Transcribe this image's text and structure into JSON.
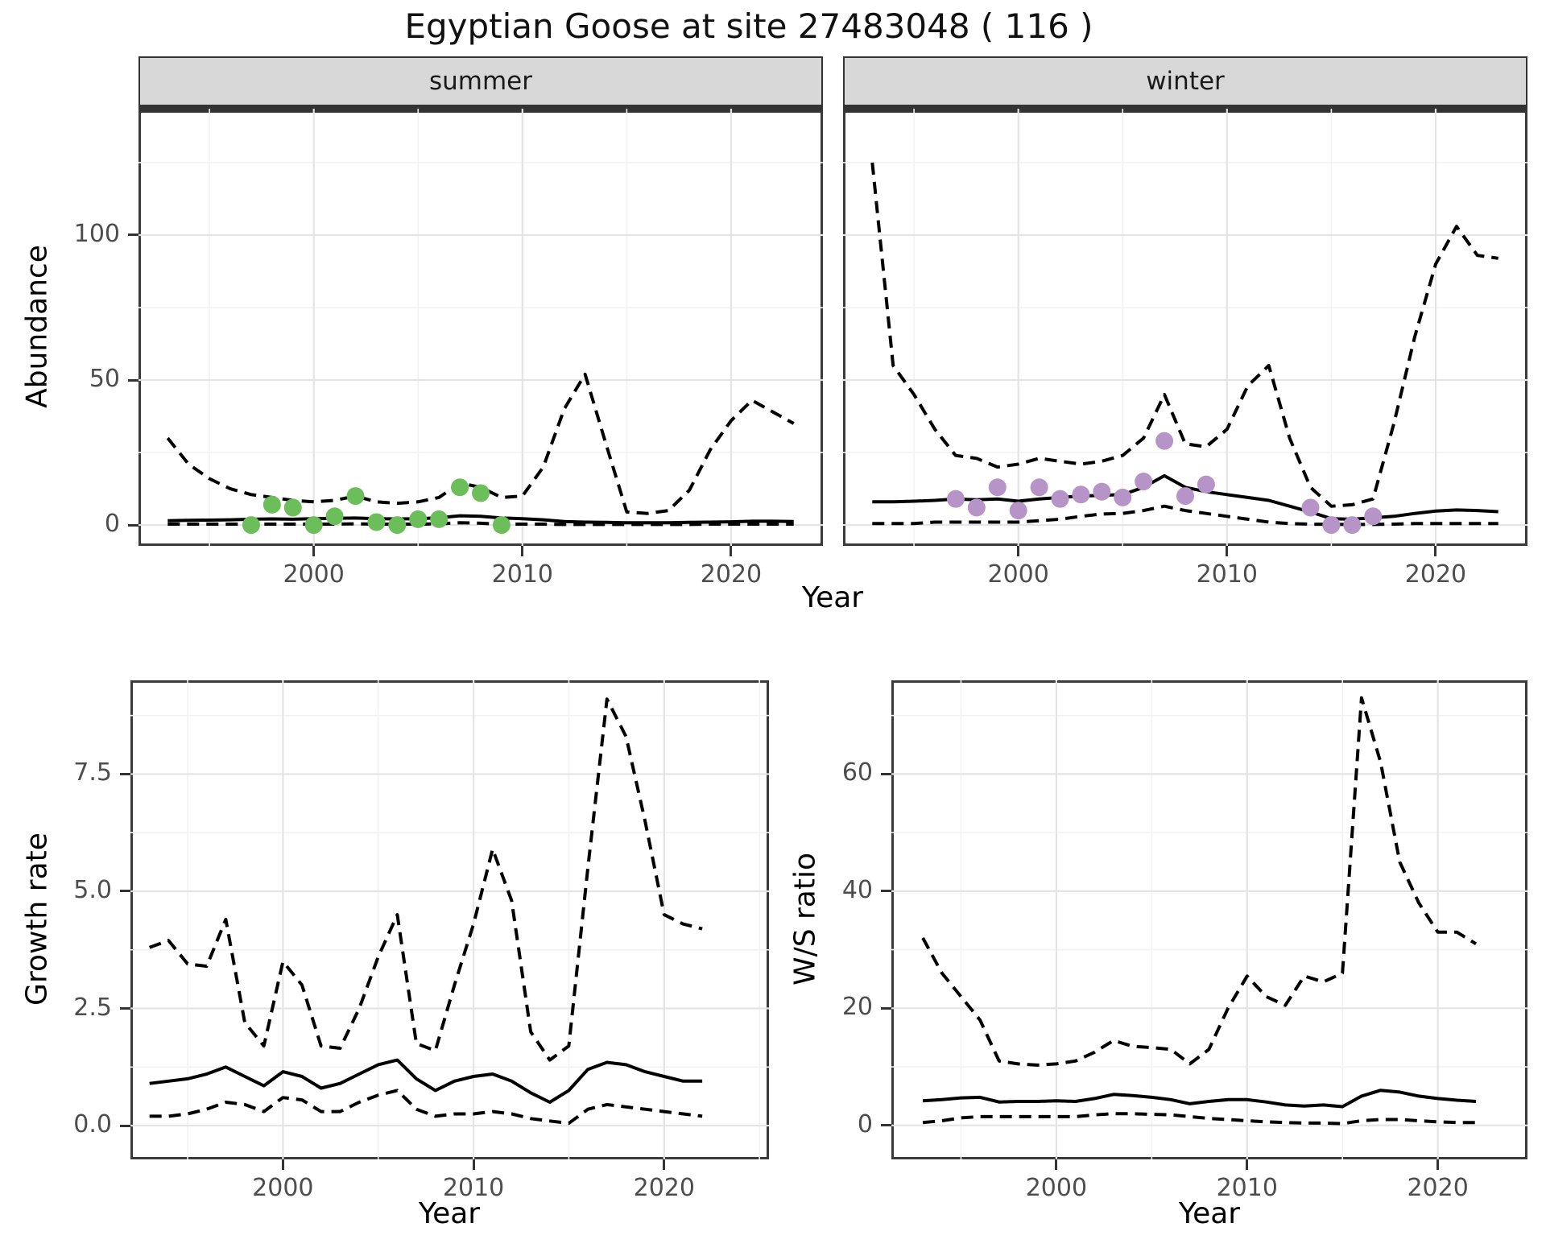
{
  "title": "Egyptian Goose at site 27483048 ( 116 )",
  "facets": {
    "summer": "summer",
    "winter": "winter"
  },
  "axes": {
    "abundance_label": "Abundance",
    "growth_label": "Growth rate",
    "ws_label": "W/S ratio",
    "year_label": "Year"
  },
  "colors": {
    "summer_points": "#6CBE5A",
    "winter_points": "#B694C7",
    "line": "#000000",
    "strip_fill": "#D8D8D8",
    "grid_major": "#E4E4E4",
    "grid_minor": "#F2F2F2",
    "tick_text": "#4d4d4d"
  },
  "chart_data": [
    {
      "id": "abundance-summer",
      "type": "line",
      "facet": "summer",
      "title": "Abundance (summer facet), model fit with dashed 95% CI and observed counts",
      "xlabel": "Year",
      "ylabel": "Abundance",
      "xlim": [
        1991.6,
        2024.4
      ],
      "ylim": [
        -7.2,
        143.6
      ],
      "xticks": [
        2000,
        2010,
        2020
      ],
      "xtick_labels": [
        "2000",
        "2010",
        "2020"
      ],
      "xminor": [
        1995,
        2005,
        2015
      ],
      "yticks": [
        0,
        50,
        100
      ],
      "ytick_labels": [
        "0",
        "50",
        "100"
      ],
      "yminor": [
        25,
        75,
        125
      ],
      "show_y_labels": true,
      "x": [
        1993,
        1994,
        1995,
        1996,
        1997,
        1998,
        1999,
        2000,
        2001,
        2002,
        2003,
        2004,
        2005,
        2006,
        2007,
        2008,
        2009,
        2010,
        2011,
        2012,
        2013,
        2014,
        2015,
        2016,
        2017,
        2018,
        2019,
        2020,
        2021,
        2022,
        2023
      ],
      "series": [
        {
          "name": "upper_ci",
          "style": "dashed",
          "values": [
            30,
            21,
            16,
            12.5,
            10.5,
            9.5,
            8.5,
            8,
            8.5,
            10,
            8,
            7.5,
            8,
            9.5,
            14.5,
            13,
            9.5,
            10,
            20,
            40,
            52,
            28,
            4.5,
            4,
            5,
            12,
            26,
            36,
            43,
            39,
            35
          ]
        },
        {
          "name": "lower_ci",
          "style": "dashed",
          "values": [
            0.3,
            0.3,
            0.3,
            0.3,
            0.3,
            0.3,
            0.3,
            0.3,
            0.3,
            0.4,
            0.3,
            0.3,
            0.3,
            0.4,
            0.8,
            0.6,
            0.3,
            0.3,
            0.3,
            0.2,
            0.2,
            0.2,
            0.2,
            0.2,
            0.2,
            0.2,
            0.3,
            0.3,
            0.3,
            0.3,
            0.3
          ]
        },
        {
          "name": "fit",
          "style": "solid",
          "values": [
            1.5,
            1.6,
            1.7,
            1.8,
            2.0,
            2.1,
            2.0,
            2.2,
            2.3,
            2.4,
            2.2,
            2.1,
            2.2,
            2.5,
            3.2,
            3.0,
            2.4,
            2.2,
            1.8,
            1.2,
            1.0,
            0.9,
            0.8,
            0.8,
            0.8,
            0.9,
            1.0,
            1.1,
            1.3,
            1.3,
            1.2
          ]
        }
      ],
      "points": {
        "name": "observed-summer",
        "color": "#6CBE5A",
        "x": [
          1997,
          1998,
          1999,
          2000,
          2001,
          2002,
          2003,
          2004,
          2005,
          2006,
          2007,
          2008,
          2009
        ],
        "y": [
          0,
          7,
          6,
          0,
          3,
          10,
          1,
          0,
          2,
          2,
          13,
          11,
          0
        ]
      }
    },
    {
      "id": "abundance-winter",
      "type": "line",
      "facet": "winter",
      "title": "Abundance (winter facet), model fit with dashed 95% CI and observed counts",
      "xlabel": "Year",
      "ylabel": "Abundance",
      "xlim": [
        1991.6,
        2024.4
      ],
      "ylim": [
        -7.2,
        143.6
      ],
      "xticks": [
        2000,
        2010,
        2020
      ],
      "xtick_labels": [
        "2000",
        "2010",
        "2020"
      ],
      "xminor": [
        1995,
        2005,
        2015
      ],
      "yticks": [
        0,
        50,
        100
      ],
      "ytick_labels": [
        "0",
        "50",
        "100"
      ],
      "yminor": [
        25,
        75,
        125
      ],
      "show_y_labels": false,
      "x": [
        1993,
        1994,
        1995,
        1996,
        1997,
        1998,
        1999,
        2000,
        2001,
        2002,
        2003,
        2004,
        2005,
        2006,
        2007,
        2008,
        2009,
        2010,
        2011,
        2012,
        2013,
        2014,
        2015,
        2016,
        2017,
        2018,
        2019,
        2020,
        2021,
        2022,
        2023
      ],
      "series": [
        {
          "name": "upper_ci",
          "style": "dashed",
          "values": [
            125,
            55,
            45,
            33,
            24,
            23,
            20,
            21,
            23,
            22,
            21,
            22,
            24,
            30,
            45,
            28,
            27,
            33,
            48,
            55,
            30,
            13,
            6.5,
            7,
            9,
            35,
            65,
            90,
            103,
            93,
            92
          ]
        },
        {
          "name": "lower_ci",
          "style": "dashed",
          "values": [
            0.5,
            0.5,
            0.5,
            1,
            1,
            1,
            1,
            1,
            1.5,
            2,
            3,
            3.8,
            4,
            5,
            6.5,
            5,
            4,
            3,
            2,
            1,
            0.5,
            0.3,
            0.2,
            0.2,
            0.2,
            0.3,
            0.5,
            0.5,
            0.5,
            0.5,
            0.5
          ]
        },
        {
          "name": "fit",
          "style": "solid",
          "values": [
            8,
            8,
            8.2,
            8.5,
            9,
            8.7,
            9,
            8.2,
            9,
            9.5,
            10,
            10.2,
            10.5,
            13,
            17,
            13,
            11.5,
            10.5,
            9.5,
            8.5,
            6.5,
            4.5,
            2.2,
            2,
            2.5,
            3,
            4,
            4.8,
            5.2,
            5,
            4.6
          ]
        }
      ],
      "points": {
        "name": "observed-winter",
        "color": "#B694C7",
        "x": [
          1997,
          1998,
          1999,
          2000,
          2001,
          2002,
          2003,
          2004,
          2005,
          2006,
          2007,
          2008,
          2009,
          2014,
          2015,
          2016,
          2017
        ],
        "y": [
          9,
          6,
          13,
          5,
          13,
          9,
          10.5,
          11.5,
          9.5,
          15,
          29,
          10,
          14,
          6,
          0,
          0,
          3
        ]
      }
    },
    {
      "id": "growth-rate",
      "type": "line",
      "title": "Growth rate with dashed 95% CI",
      "xlabel": "Year",
      "ylabel": "Growth rate",
      "xlim": [
        1992.0,
        2025.5
      ],
      "ylim": [
        -0.72,
        9.5
      ],
      "xticks": [
        2000,
        2010,
        2020
      ],
      "xtick_labels": [
        "2000",
        "2010",
        "2020"
      ],
      "xminor": [
        1995,
        2005,
        2015,
        2025
      ],
      "yticks": [
        0.0,
        2.5,
        5.0,
        7.5
      ],
      "ytick_labels": [
        "0.0",
        "2.5",
        "5.0",
        "7.5"
      ],
      "yminor": [
        1.25,
        3.75,
        6.25,
        8.75
      ],
      "show_y_labels": true,
      "x": [
        1993,
        1994,
        1995,
        1996,
        1997,
        1998,
        1999,
        2000,
        2001,
        2002,
        2003,
        2004,
        2005,
        2006,
        2007,
        2008,
        2009,
        2010,
        2011,
        2012,
        2013,
        2014,
        2015,
        2016,
        2017,
        2018,
        2019,
        2020,
        2021,
        2022
      ],
      "series": [
        {
          "name": "upper_ci",
          "style": "dashed",
          "values": [
            3.8,
            3.95,
            3.45,
            3.4,
            4.4,
            2.2,
            1.7,
            3.5,
            3.0,
            1.7,
            1.65,
            2.5,
            3.6,
            4.5,
            1.75,
            1.6,
            3.0,
            4.3,
            5.9,
            4.8,
            2.0,
            1.4,
            1.7,
            5.5,
            9.1,
            8.3,
            6.5,
            4.5,
            4.3,
            4.2
          ]
        },
        {
          "name": "lower_ci",
          "style": "dashed",
          "values": [
            0.2,
            0.2,
            0.25,
            0.35,
            0.5,
            0.45,
            0.3,
            0.6,
            0.55,
            0.3,
            0.3,
            0.5,
            0.65,
            0.75,
            0.35,
            0.2,
            0.25,
            0.25,
            0.3,
            0.25,
            0.15,
            0.1,
            0.05,
            0.35,
            0.45,
            0.4,
            0.35,
            0.3,
            0.25,
            0.2
          ]
        },
        {
          "name": "fit",
          "style": "solid",
          "values": [
            0.9,
            0.95,
            1.0,
            1.1,
            1.25,
            1.05,
            0.85,
            1.15,
            1.05,
            0.8,
            0.9,
            1.1,
            1.3,
            1.4,
            1.0,
            0.75,
            0.95,
            1.05,
            1.1,
            0.95,
            0.7,
            0.5,
            0.75,
            1.2,
            1.35,
            1.3,
            1.15,
            1.05,
            0.95,
            0.95
          ]
        }
      ],
      "points": null
    },
    {
      "id": "ws-ratio",
      "type": "line",
      "title": "Winter/Summer ratio with dashed 95% CI",
      "xlabel": "Year",
      "ylabel": "W/S ratio",
      "xlim": [
        1991.35,
        2024.7
      ],
      "ylim": [
        -5.8,
        76.0
      ],
      "xticks": [
        2000,
        2010,
        2020
      ],
      "xtick_labels": [
        "2000",
        "2010",
        "2020"
      ],
      "xminor": [
        1995,
        2005,
        2015
      ],
      "yticks": [
        0,
        20,
        40,
        60
      ],
      "ytick_labels": [
        "0",
        "20",
        "40",
        "60"
      ],
      "yminor": [
        10,
        30,
        50,
        70
      ],
      "show_y_labels": true,
      "x": [
        1993,
        1994,
        1995,
        1996,
        1997,
        1998,
        1999,
        2000,
        2001,
        2002,
        2003,
        2004,
        2005,
        2006,
        2007,
        2008,
        2009,
        2010,
        2011,
        2012,
        2013,
        2014,
        2015,
        2016,
        2017,
        2018,
        2019,
        2020,
        2021,
        2022
      ],
      "series": [
        {
          "name": "upper_ci",
          "style": "dashed",
          "values": [
            32,
            26,
            22,
            18,
            11,
            10.5,
            10.3,
            10.5,
            11,
            12.5,
            14.5,
            13.5,
            13.3,
            13,
            10.5,
            13,
            20,
            25.5,
            22,
            20.5,
            25.5,
            24.5,
            26,
            73,
            62,
            45,
            38,
            33,
            33,
            31
          ]
        },
        {
          "name": "lower_ci",
          "style": "dashed",
          "values": [
            0.5,
            0.8,
            1.3,
            1.5,
            1.5,
            1.5,
            1.5,
            1.5,
            1.5,
            1.8,
            2.0,
            2.0,
            1.9,
            1.8,
            1.5,
            1.2,
            1.0,
            0.8,
            0.6,
            0.5,
            0.4,
            0.4,
            0.3,
            0.8,
            1.0,
            1.0,
            0.8,
            0.6,
            0.5,
            0.5
          ]
        },
        {
          "name": "fit",
          "style": "solid",
          "values": [
            4.2,
            4.4,
            4.7,
            4.8,
            4.0,
            4.1,
            4.1,
            4.2,
            4.1,
            4.6,
            5.3,
            5.1,
            4.8,
            4.4,
            3.7,
            4.1,
            4.4,
            4.4,
            4.0,
            3.5,
            3.3,
            3.5,
            3.2,
            5.0,
            6.0,
            5.7,
            5.0,
            4.6,
            4.3,
            4.1
          ]
        }
      ],
      "points": null
    }
  ]
}
